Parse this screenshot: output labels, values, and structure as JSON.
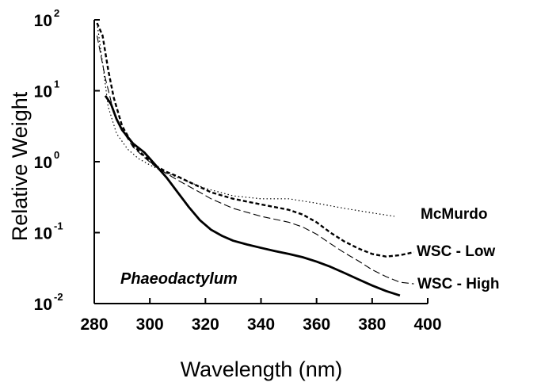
{
  "chart_data": {
    "type": "line",
    "title": "",
    "xlabel": "Wavelength (nm)",
    "ylabel": "Relative Weight",
    "xlim": [
      280,
      400
    ],
    "ylim": [
      0.01,
      100
    ],
    "yscale": "log",
    "grid": false,
    "legend": "inline labels at right end of curves",
    "x_ticks": [
      "280",
      "300",
      "320",
      "340",
      "360",
      "380",
      "400"
    ],
    "x_tick_values": [
      280,
      300,
      320,
      340,
      360,
      380,
      400
    ],
    "y_ticks": [
      {
        "base": "10",
        "exp": "-2",
        "value": 0.01
      },
      {
        "base": "10",
        "exp": "-1",
        "value": 0.1
      },
      {
        "base": "10",
        "exp": "0",
        "value": 1
      },
      {
        "base": "10",
        "exp": "1",
        "value": 10
      },
      {
        "base": "10",
        "exp": "2",
        "value": 100
      }
    ],
    "annotation": "Phaeodactylum",
    "series": [
      {
        "name": "Phaeodactylum",
        "style": "solid",
        "x": [
          284,
          286,
          288,
          290,
          294,
          298,
          302,
          306,
          310,
          314,
          318,
          322,
          326,
          330,
          335,
          340,
          345,
          350,
          355,
          360,
          365,
          370,
          375,
          380,
          385,
          390
        ],
        "y": [
          8.5,
          6.5,
          4.0,
          2.8,
          1.8,
          1.35,
          0.9,
          0.6,
          0.37,
          0.23,
          0.15,
          0.11,
          0.09,
          0.077,
          0.068,
          0.061,
          0.055,
          0.05,
          0.045,
          0.039,
          0.033,
          0.027,
          0.022,
          0.018,
          0.015,
          0.013
        ]
      },
      {
        "name": "McMurdo",
        "style": "dotted",
        "x": [
          281,
          283,
          285,
          288,
          292,
          296,
          300,
          305,
          310,
          315,
          320,
          330,
          340,
          350,
          360,
          370,
          380,
          388
        ],
        "y": [
          90,
          25,
          6,
          2.5,
          1.5,
          1.1,
          0.9,
          0.72,
          0.6,
          0.5,
          0.42,
          0.33,
          0.3,
          0.3,
          0.26,
          0.22,
          0.19,
          0.17
        ]
      },
      {
        "name": "WSC - Low",
        "style": "dashed-bold",
        "x": [
          281,
          283,
          285,
          287,
          290,
          294,
          298,
          302,
          306,
          310,
          314,
          318,
          322,
          330,
          340,
          350,
          355,
          360,
          365,
          370,
          375,
          380,
          385,
          390,
          395
        ],
        "y": [
          90,
          60,
          20,
          8,
          3.2,
          1.7,
          1.2,
          0.88,
          0.72,
          0.62,
          0.52,
          0.44,
          0.37,
          0.3,
          0.25,
          0.21,
          0.18,
          0.14,
          0.1,
          0.075,
          0.06,
          0.05,
          0.046,
          0.048,
          0.053
        ]
      },
      {
        "name": "WSC - High",
        "style": "dashed-thin",
        "x": [
          281,
          284,
          287,
          290,
          294,
          298,
          302,
          306,
          310,
          314,
          318,
          322,
          330,
          340,
          350,
          355,
          360,
          365,
          370,
          375,
          380,
          385,
          390,
          395
        ],
        "y": [
          60,
          15,
          5,
          2.8,
          1.6,
          1.15,
          0.85,
          0.68,
          0.55,
          0.45,
          0.37,
          0.3,
          0.22,
          0.17,
          0.14,
          0.12,
          0.095,
          0.07,
          0.052,
          0.04,
          0.03,
          0.024,
          0.02,
          0.019
        ]
      }
    ]
  }
}
